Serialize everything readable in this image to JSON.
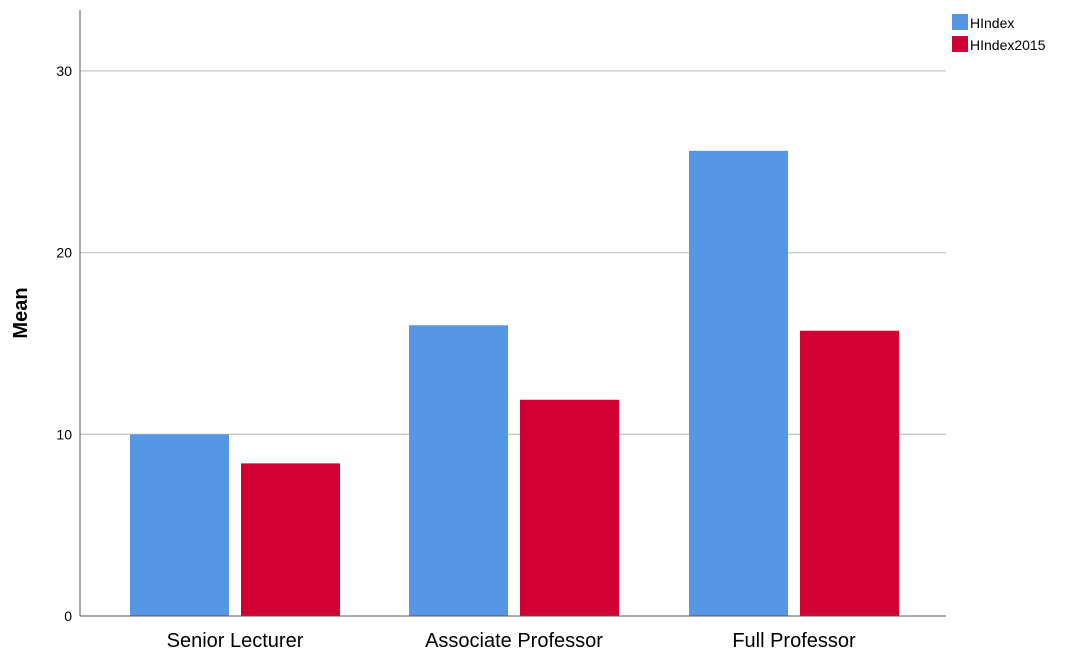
{
  "chart_data": {
    "type": "bar",
    "categories": [
      "Senior Lecturer",
      "Associate Professor",
      "Full Professor"
    ],
    "series": [
      {
        "name": "HIndex",
        "color": "#5596e5",
        "values": [
          10.0,
          16.0,
          25.6
        ]
      },
      {
        "name": "HIndex2015",
        "color": "#d20032",
        "values": [
          8.4,
          11.9,
          15.7
        ]
      }
    ],
    "title": "",
    "xlabel": "",
    "ylabel": "Mean",
    "ylim": [
      0,
      33
    ],
    "yticks": [
      0,
      10,
      20,
      30
    ],
    "grid": true,
    "legend_position": "top-right"
  }
}
